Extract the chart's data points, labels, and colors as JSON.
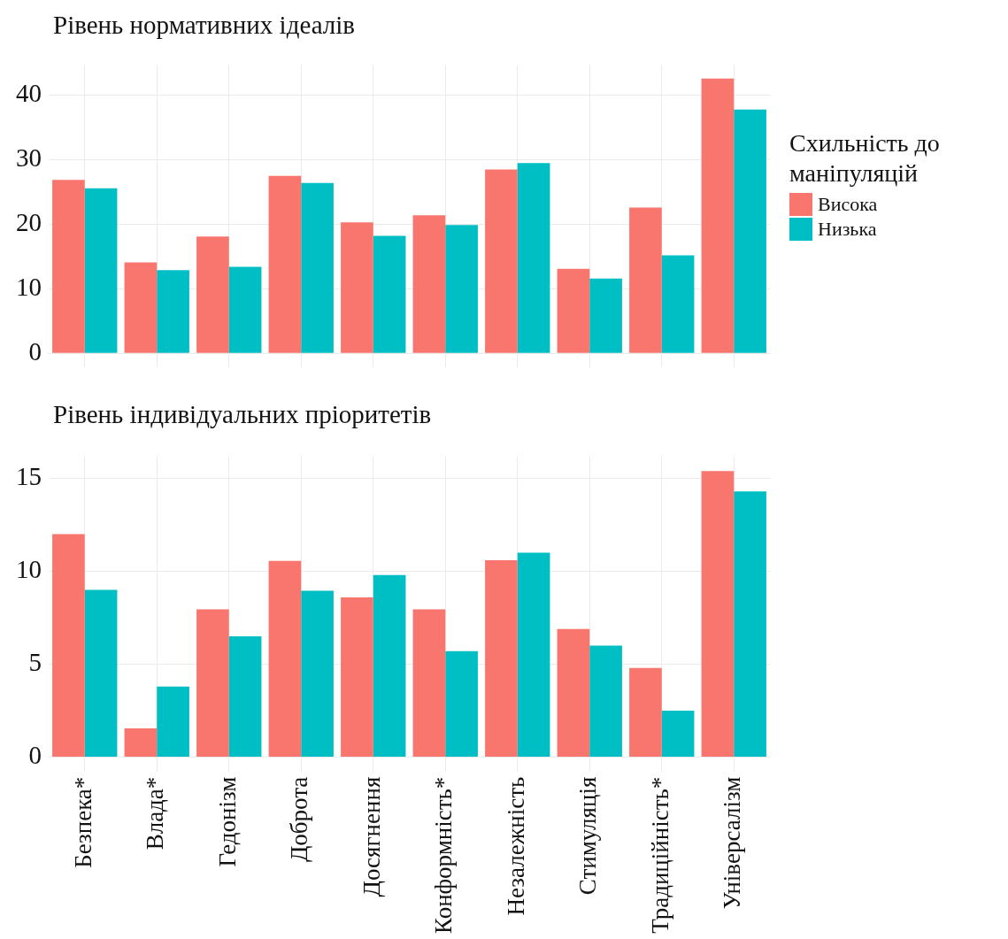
{
  "chart_data": [
    {
      "type": "bar",
      "title": "Рівень нормативних ідеалів",
      "categories": [
        null,
        null,
        null,
        null,
        null,
        null,
        null,
        null,
        null,
        null
      ],
      "series": [
        {
          "name": "Висока",
          "color": "#f8766d",
          "values": [
            26.9,
            14.1,
            18.1,
            27.5,
            20.3,
            21.4,
            28.5,
            13.1,
            22.6,
            42.6
          ]
        },
        {
          "name": "Низька",
          "color": "#00bfc4",
          "values": [
            25.6,
            12.9,
            13.4,
            26.4,
            18.2,
            19.9,
            29.5,
            11.6,
            15.2,
            37.8
          ]
        }
      ],
      "ylim": [
        -2.1,
        44.7
      ],
      "yticks": [
        0,
        10,
        20,
        30,
        40
      ],
      "grid": true,
      "legend": "right",
      "legend_title": "Схильність до маніпуляцій",
      "tick_labels": "y"
    },
    {
      "type": "bar",
      "title": "Рівень індивідуальних пріоритетів",
      "categories": [
        "Безпека*",
        "Влада*",
        "Гедонізм",
        "Доброта",
        "Досягнення",
        "Конформність*",
        "Незалежність",
        "Стимуляція",
        "Традиційність*",
        "Універсалізм"
      ],
      "series": [
        {
          "color": "#f8766d",
          "values": [
            12.0,
            1.55,
            7.95,
            10.56,
            8.6,
            7.95,
            10.6,
            6.9,
            4.8,
            15.4
          ]
        },
        {
          "color": "#00bfc4",
          "values": [
            9.0,
            3.8,
            6.5,
            8.96,
            9.8,
            5.7,
            11.0,
            6.0,
            2.5,
            14.3
          ]
        }
      ],
      "ylim": [
        -0.77,
        16.2
      ],
      "yticks": [
        0,
        5,
        10,
        15
      ],
      "grid": true
    }
  ]
}
